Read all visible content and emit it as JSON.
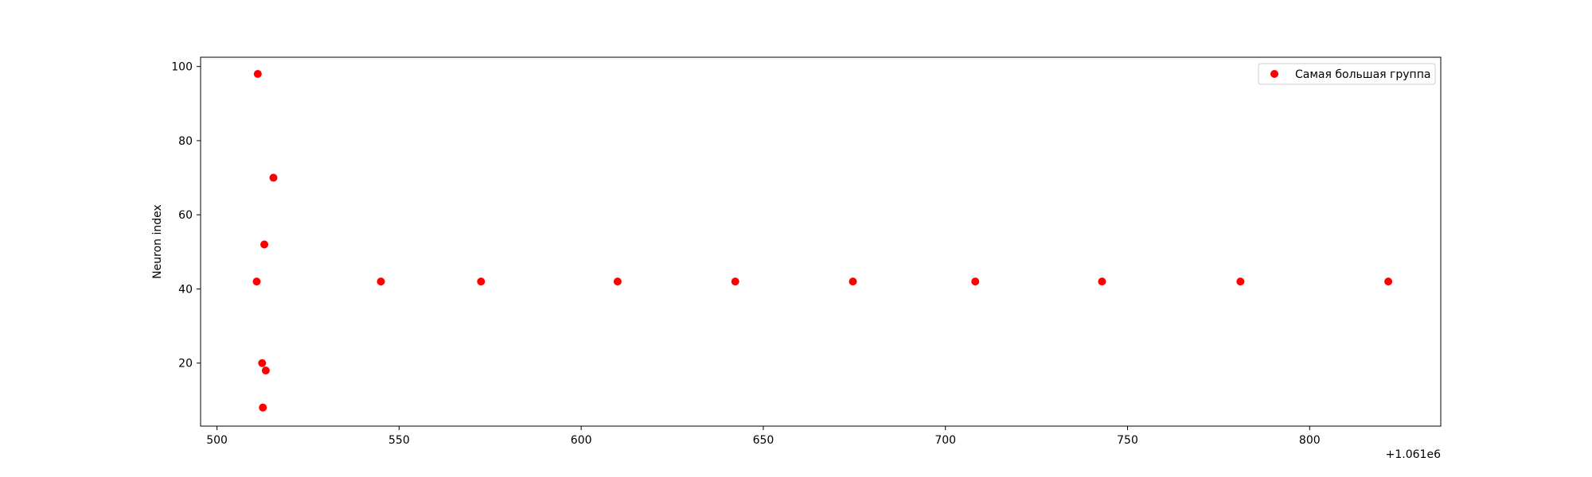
{
  "chart_data": {
    "type": "scatter",
    "title": "",
    "xlabel": "",
    "ylabel": "Neuron index",
    "x_offset_label": "+1.061e6",
    "x_offset": 1061000,
    "xlim": [
      1060495.5,
      1060836
    ],
    "ylim": [
      3,
      102.5
    ],
    "xticks": [
      500,
      550,
      600,
      650,
      700,
      750,
      800
    ],
    "yticks": [
      20,
      40,
      60,
      80,
      100
    ],
    "grid": false,
    "legend_position": "top-right",
    "series": [
      {
        "name": "Самая большая группа",
        "color": "#ff0000",
        "points": [
          {
            "x": 1061511.2,
            "y": 98
          },
          {
            "x": 1061515.5,
            "y": 70
          },
          {
            "x": 1061513.0,
            "y": 52
          },
          {
            "x": 1061510.9,
            "y": 42
          },
          {
            "x": 1061512.4,
            "y": 20
          },
          {
            "x": 1061513.4,
            "y": 18
          },
          {
            "x": 1061512.6,
            "y": 8
          },
          {
            "x": 1061545.0,
            "y": 42
          },
          {
            "x": 1061572.5,
            "y": 42
          },
          {
            "x": 1061610.0,
            "y": 42
          },
          {
            "x": 1061642.3,
            "y": 42
          },
          {
            "x": 1061674.6,
            "y": 42
          },
          {
            "x": 1061708.2,
            "y": 42
          },
          {
            "x": 1061743.0,
            "y": 42
          },
          {
            "x": 1061781.0,
            "y": 42
          },
          {
            "x": 1061821.6,
            "y": 42
          }
        ]
      }
    ]
  }
}
